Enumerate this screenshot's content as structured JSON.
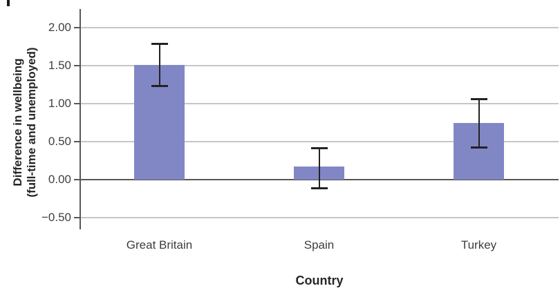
{
  "chart_data": {
    "type": "bar",
    "title": "",
    "xlabel": "Country",
    "ylabel_lines": [
      "Difference in wellbeing",
      "(full-time and unemployed)"
    ],
    "categories": [
      "Great Britain",
      "Spain",
      "Turkey"
    ],
    "values": [
      1.51,
      0.17,
      0.75
    ],
    "error_bars": {
      "high": [
        1.79,
        0.42,
        1.06
      ],
      "low": [
        1.24,
        -0.11,
        0.43
      ]
    },
    "yticks": [
      2.0,
      1.5,
      1.0,
      0.5,
      0.0,
      -0.5
    ],
    "ytick_labels": [
      "2.00",
      "1.50",
      "1.00",
      "0.50",
      "0.00",
      "−0.50"
    ],
    "ylim": [
      -0.75,
      2.25
    ],
    "grid": true,
    "legend": "none",
    "bar_color": "#8187C4",
    "error_bar_color": "#222222",
    "gridline_color": "#c6c6c6",
    "axis_color": "#57575a"
  }
}
